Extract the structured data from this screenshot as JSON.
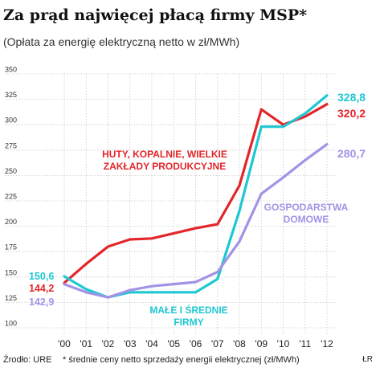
{
  "header": {
    "title": "Za prąd najwięcej płacą firmy MSP*",
    "subtitle": "(Opłata za energię elektryczną netto w zł/MWh)"
  },
  "footer": {
    "source": "Źrodło: URE",
    "note": "* średnie ceny netto sprzedaży energii elektrycznej (zł/MWh)",
    "credit": "ŁR"
  },
  "chart_data": {
    "type": "line",
    "ylim": [
      100,
      350
    ],
    "yticks": [
      100,
      125,
      150,
      175,
      200,
      225,
      250,
      275,
      300,
      325,
      350
    ],
    "categories": [
      "'00",
      "'01",
      "'02",
      "'03",
      "'04",
      "'05",
      "'06",
      "'07",
      "'08",
      "'09",
      "'10",
      "'11",
      "'12"
    ],
    "grid": true,
    "series": [
      {
        "name": "HUTY, KOPALNIE, WIELKIE ZAKŁADY PRODUKCYJNE",
        "label_lines": [
          "HUTY, KOPALNIE, WIELKIE",
          "ZAKŁADY PRODUKCYJNE"
        ],
        "color": "#e3262b",
        "values": [
          144.2,
          163,
          180,
          187,
          188,
          193,
          198,
          202,
          240,
          315,
          300,
          308,
          320.2
        ],
        "start_label": "144,2",
        "end_label": "320,2"
      },
      {
        "name": "MAŁE I ŚREDNIE FIRMY",
        "label_lines": [
          "MAŁE I ŚREDNIE",
          "FIRMY"
        ],
        "color": "#1ec8d2",
        "values": [
          150.6,
          138,
          130,
          135,
          135,
          135,
          135,
          148,
          215,
          298,
          298,
          311,
          328.8
        ],
        "start_label": "150,6",
        "end_label": "328,8"
      },
      {
        "name": "GOSPODARSTWA DOMOWE",
        "label_lines": [
          "GOSPODARSTWA",
          "DOMOWE"
        ],
        "color": "#a293e6",
        "values": [
          142.9,
          135,
          130,
          137,
          141,
          143,
          145,
          155,
          185,
          232,
          248,
          265,
          280.7
        ],
        "start_label": "142,9",
        "end_label": "280,7"
      }
    ]
  }
}
